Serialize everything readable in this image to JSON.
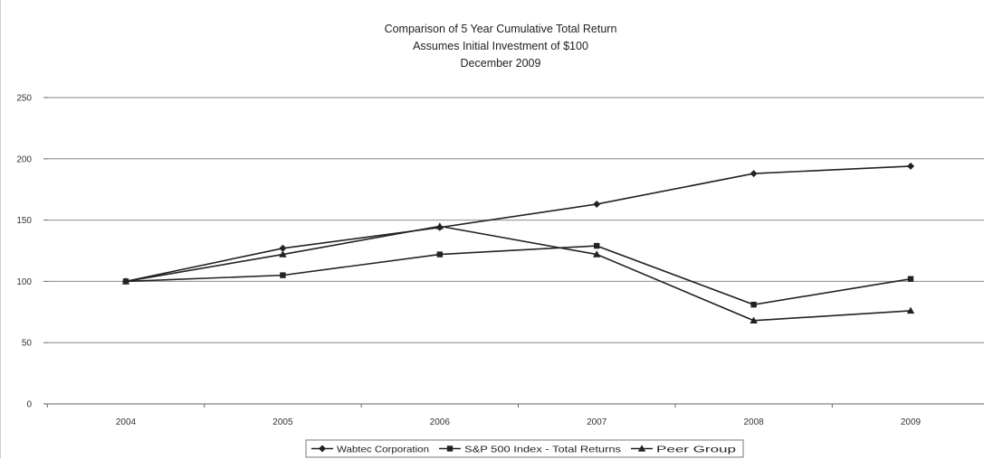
{
  "chart_data": {
    "type": "line",
    "title": [
      "Comparison of 5 Year Cumulative Total Return",
      "Assumes Initial Investment of $100",
      "December 2009"
    ],
    "xlabel": "",
    "ylabel": "",
    "x": [
      "2004",
      "2005",
      "2006",
      "2007",
      "2008",
      "2009"
    ],
    "ylim": [
      0,
      250
    ],
    "yticks": [
      "0",
      "50",
      "100",
      "150",
      "200",
      "250"
    ],
    "grid": "horizontal",
    "legend_position": "bottom",
    "series": [
      {
        "name": "Wabtec Corporation",
        "marker": "diamond",
        "values": [
          100,
          127,
          144,
          163,
          188,
          194
        ]
      },
      {
        "name": "S&P 500 Index - Total Returns",
        "marker": "square",
        "values": [
          100,
          105,
          122,
          129,
          81,
          102
        ]
      },
      {
        "name": "Peer Group",
        "marker": "triangle",
        "values": [
          100,
          122,
          145,
          122,
          68,
          76
        ]
      }
    ],
    "colors": {
      "line": "#222222",
      "grid": "#8a8a8a",
      "axis": "#666666"
    }
  }
}
